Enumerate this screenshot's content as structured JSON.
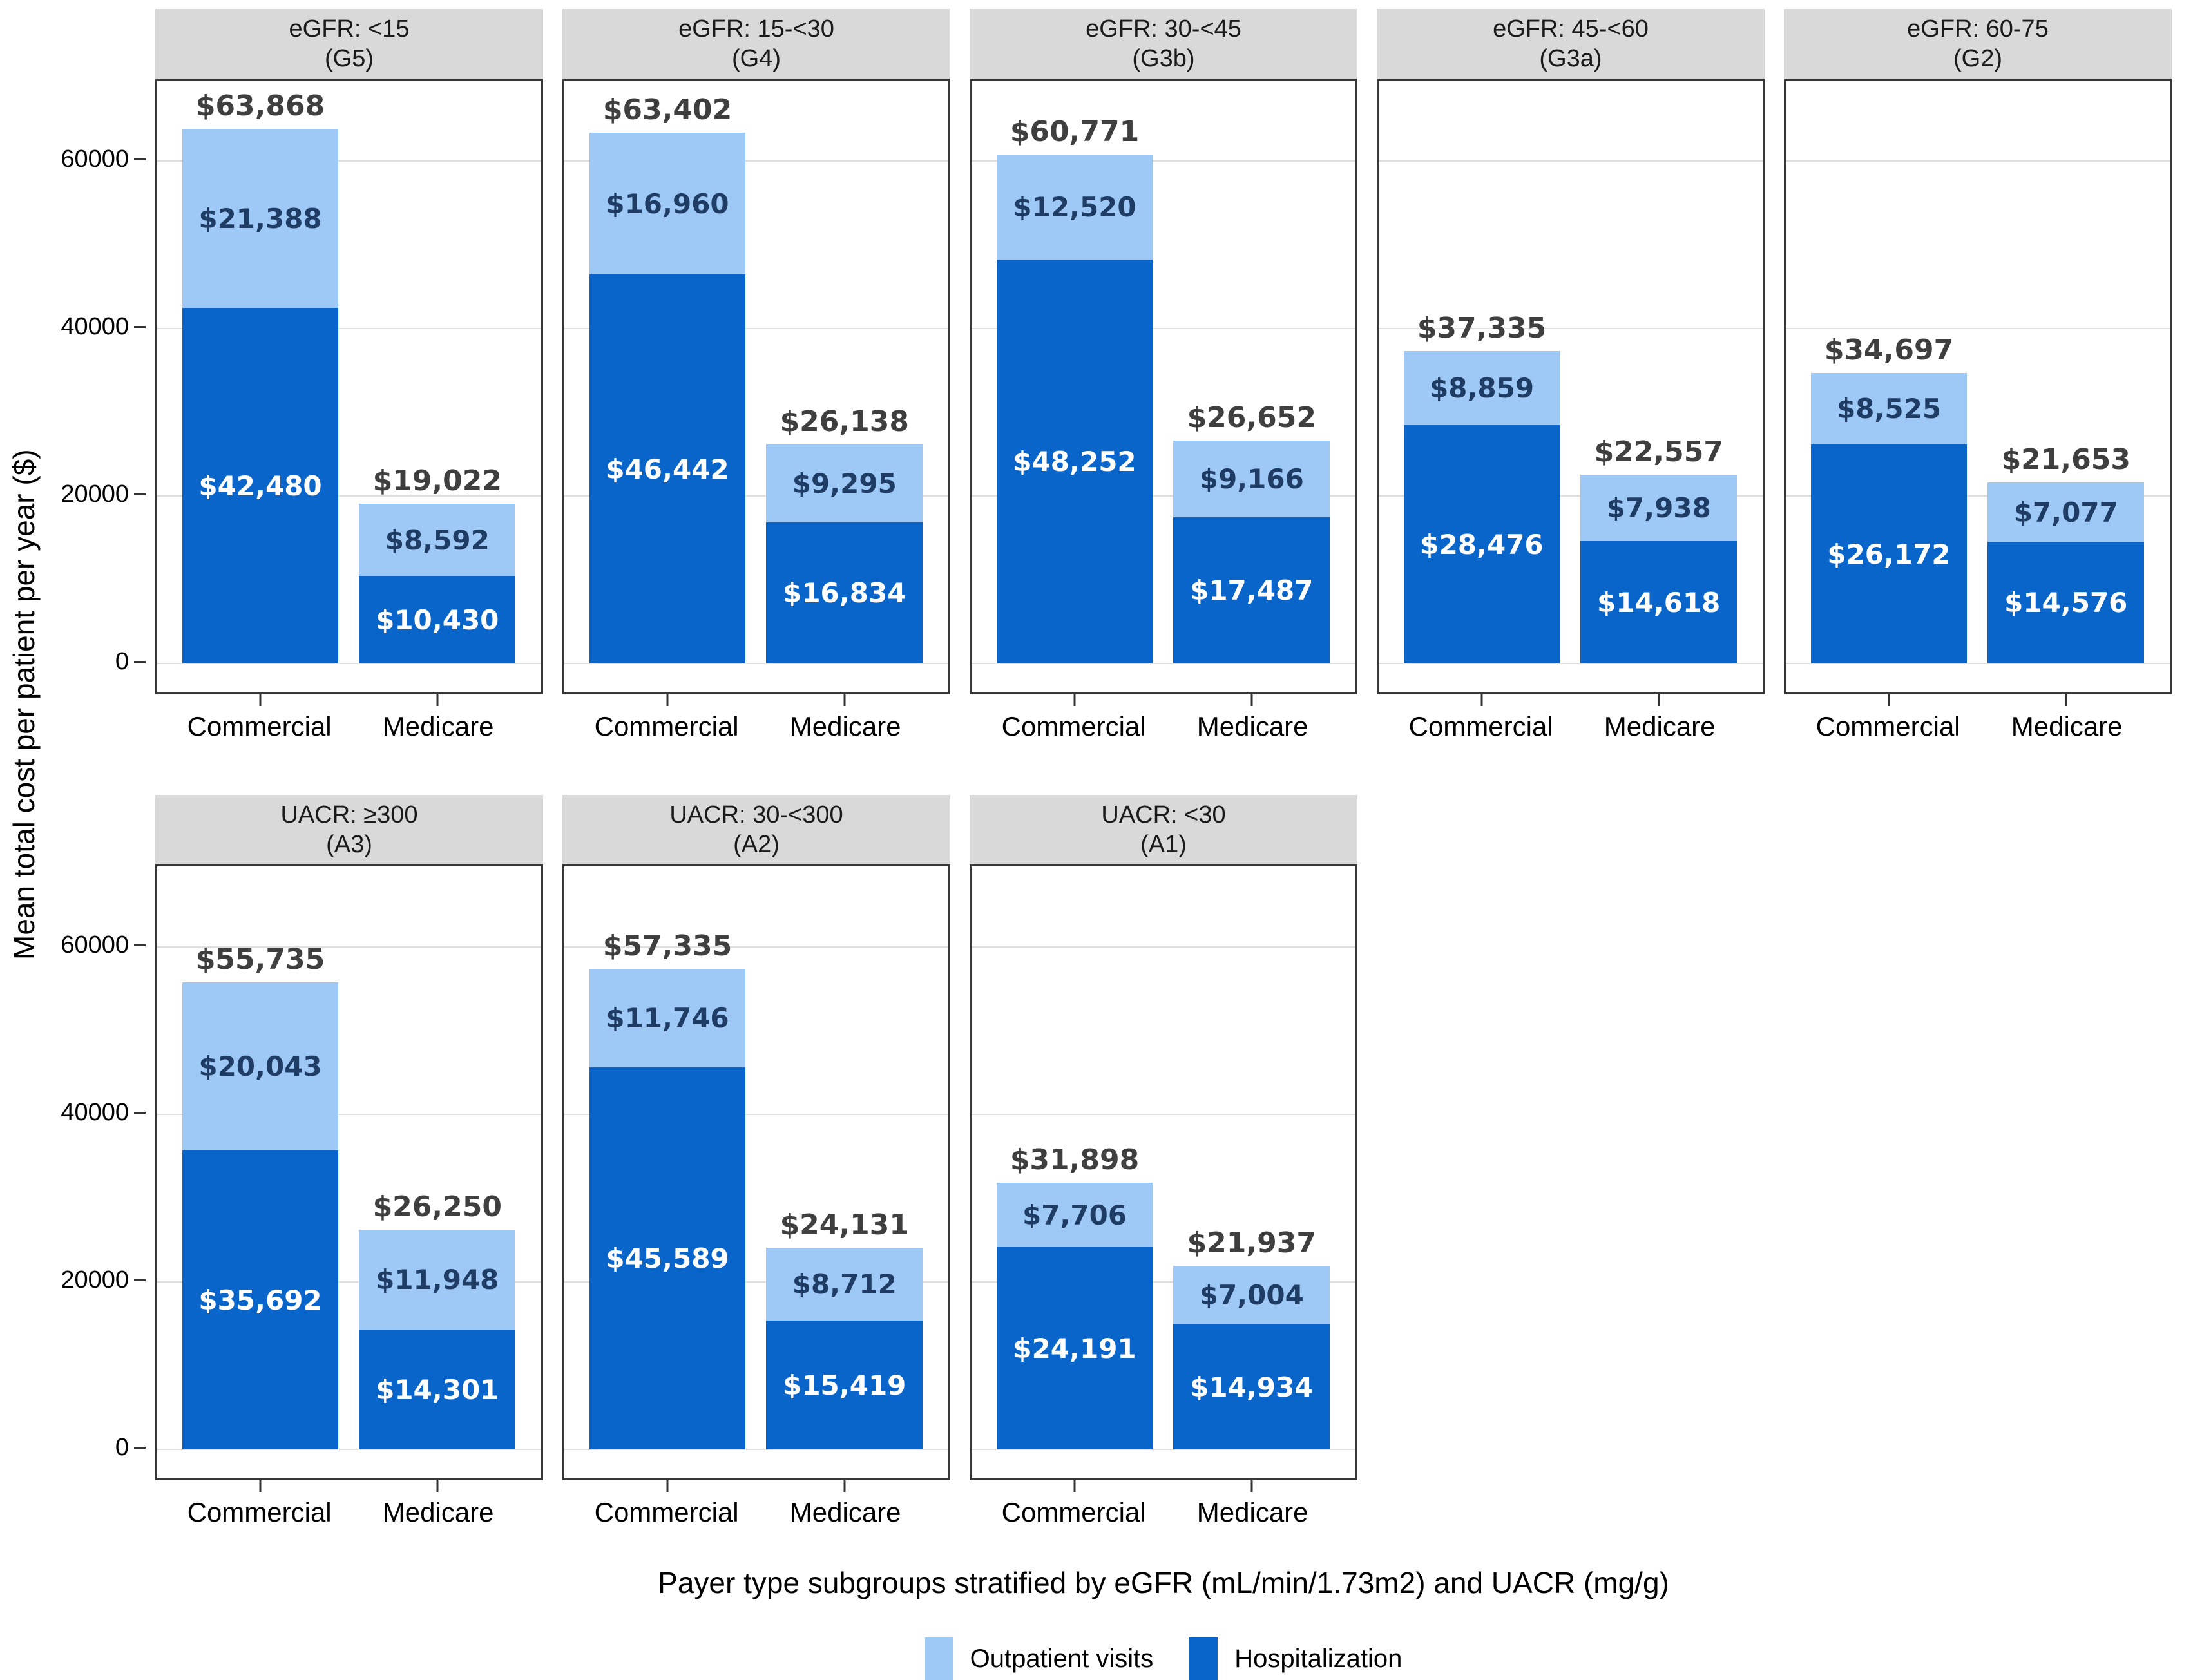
{
  "figure": {
    "ylabel": "Mean total cost per patient per year ($)",
    "xlabel": "Payer type subgroups stratified by eGFR (mL/min/1.73m2) and UACR (mg/g)"
  },
  "colors": {
    "outpatient": "#9EC9F6",
    "hospitalization": "#0A65CA",
    "facet_header_bg": "#D9D9D9",
    "panel_border": "#383838",
    "gridline": "#DFDFDF",
    "total_label": "#3F3F3F",
    "outpatient_label_text": "#1E3C64",
    "hospitalization_label_text": "#FFFFFF"
  },
  "chart_data": {
    "type": "bar",
    "stacked": true,
    "grid": true,
    "legend_position": "bottom",
    "categories": [
      "Commercial",
      "Medicare"
    ],
    "yticks": [
      0,
      20000,
      40000,
      60000
    ],
    "ylim": [
      0,
      69500
    ],
    "ylabel": "Mean total cost per patient per year ($)",
    "xlabel": "Payer type subgroups stratified by eGFR (mL/min/1.73m2) and UACR (mg/g)",
    "legend": [
      {
        "label": "Outpatient visits",
        "series_key": "outpatient"
      },
      {
        "label": "Hospitalization",
        "series_key": "hospitalization"
      }
    ],
    "panels": [
      {
        "row": 1,
        "title_line1": "eGFR: <15",
        "title_line2": "(G5)",
        "bars": [
          {
            "category": "Commercial",
            "total_label": "$63,868",
            "total_value": 63868,
            "outpatient_value": 21388,
            "outpatient_label": "$21,388",
            "hospitalization_value": 42480,
            "hospitalization_label": "$42,480"
          },
          {
            "category": "Medicare",
            "total_label": "$19,022",
            "total_value": 19022,
            "outpatient_value": 8592,
            "outpatient_label": "$8,592",
            "hospitalization_value": 10430,
            "hospitalization_label": "$10,430"
          }
        ]
      },
      {
        "row": 1,
        "title_line1": "eGFR: 15-<30",
        "title_line2": "(G4)",
        "bars": [
          {
            "category": "Commercial",
            "total_label": "$63,402",
            "total_value": 63402,
            "outpatient_value": 16960,
            "outpatient_label": "$16,960",
            "hospitalization_value": 46442,
            "hospitalization_label": "$46,442"
          },
          {
            "category": "Medicare",
            "total_label": "$26,138",
            "total_value": 26138,
            "outpatient_value": 9295,
            "outpatient_label": "$9,295",
            "hospitalization_value": 16834,
            "hospitalization_label": "$16,834"
          }
        ]
      },
      {
        "row": 1,
        "title_line1": "eGFR: 30-<45",
        "title_line2": "(G3b)",
        "bars": [
          {
            "category": "Commercial",
            "total_label": "$60,771",
            "total_value": 60771,
            "outpatient_value": 12520,
            "outpatient_label": "$12,520",
            "hospitalization_value": 48252,
            "hospitalization_label": "$48,252"
          },
          {
            "category": "Medicare",
            "total_label": "$26,652",
            "total_value": 26652,
            "outpatient_value": 9166,
            "outpatient_label": "$9,166",
            "hospitalization_value": 17487,
            "hospitalization_label": "$17,487"
          }
        ]
      },
      {
        "row": 1,
        "title_line1": "eGFR: 45-<60",
        "title_line2": "(G3a)",
        "bars": [
          {
            "category": "Commercial",
            "total_label": "$37,335",
            "total_value": 37335,
            "outpatient_value": 8859,
            "outpatient_label": "$8,859",
            "hospitalization_value": 28476,
            "hospitalization_label": "$28,476"
          },
          {
            "category": "Medicare",
            "total_label": "$22,557",
            "total_value": 22557,
            "outpatient_value": 7938,
            "outpatient_label": "$7,938",
            "hospitalization_value": 14618,
            "hospitalization_label": "$14,618"
          }
        ]
      },
      {
        "row": 1,
        "title_line1": "eGFR: 60-75",
        "title_line2": "(G2)",
        "bars": [
          {
            "category": "Commercial",
            "total_label": "$34,697",
            "total_value": 34697,
            "outpatient_value": 8525,
            "outpatient_label": "$8,525",
            "hospitalization_value": 26172,
            "hospitalization_label": "$26,172"
          },
          {
            "category": "Medicare",
            "total_label": "$21,653",
            "total_value": 21653,
            "outpatient_value": 7077,
            "outpatient_label": "$7,077",
            "hospitalization_value": 14576,
            "hospitalization_label": "$14,576"
          }
        ]
      },
      {
        "row": 2,
        "title_line1": "UACR: ≥300",
        "title_line2": "(A3)",
        "bars": [
          {
            "category": "Commercial",
            "total_label": "$55,735",
            "total_value": 55735,
            "outpatient_value": 20043,
            "outpatient_label": "$20,043",
            "hospitalization_value": 35692,
            "hospitalization_label": "$35,692"
          },
          {
            "category": "Medicare",
            "total_label": "$26,250",
            "total_value": 26250,
            "outpatient_value": 11948,
            "outpatient_label": "$11,948",
            "hospitalization_value": 14301,
            "hospitalization_label": "$14,301"
          }
        ]
      },
      {
        "row": 2,
        "title_line1": "UACR: 30-<300",
        "title_line2": "(A2)",
        "bars": [
          {
            "category": "Commercial",
            "total_label": "$57,335",
            "total_value": 57335,
            "outpatient_value": 11746,
            "outpatient_label": "$11,746",
            "hospitalization_value": 45589,
            "hospitalization_label": "$45,589"
          },
          {
            "category": "Medicare",
            "total_label": "$24,131",
            "total_value": 24131,
            "outpatient_value": 8712,
            "outpatient_label": "$8,712",
            "hospitalization_value": 15419,
            "hospitalization_label": "$15,419"
          }
        ]
      },
      {
        "row": 2,
        "title_line1": "UACR: <30",
        "title_line2": "(A1)",
        "bars": [
          {
            "category": "Commercial",
            "total_label": "$31,898",
            "total_value": 31898,
            "outpatient_value": 7706,
            "outpatient_label": "$7,706",
            "hospitalization_value": 24191,
            "hospitalization_label": "$24,191"
          },
          {
            "category": "Medicare",
            "total_label": "$21,937",
            "total_value": 21937,
            "outpatient_value": 7004,
            "outpatient_label": "$7,004",
            "hospitalization_value": 14934,
            "hospitalization_label": "$14,934"
          }
        ]
      }
    ]
  }
}
